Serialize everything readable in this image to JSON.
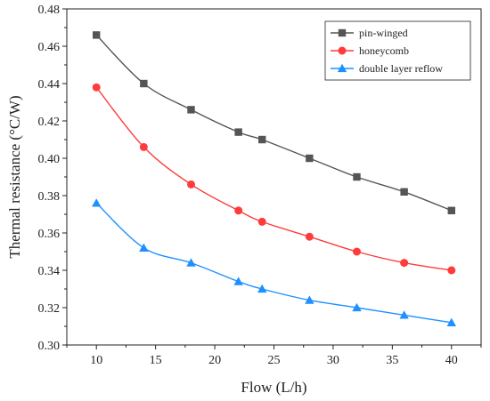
{
  "chart_data": {
    "type": "line",
    "xlabel": "Flow (L/h)",
    "ylabel": "Thermal resistance (°C/W)",
    "xlim": [
      7.5,
      42.5
    ],
    "ylim": [
      0.3,
      0.48
    ],
    "xticks": [
      10,
      15,
      20,
      25,
      30,
      35,
      40
    ],
    "yticks": [
      0.3,
      0.32,
      0.34,
      0.36,
      0.38,
      0.4,
      0.42,
      0.44,
      0.46,
      0.48
    ],
    "tick_labels_y": [
      "0.30",
      "0.32",
      "0.34",
      "0.36",
      "0.38",
      "0.40",
      "0.42",
      "0.44",
      "0.46",
      "0.48"
    ],
    "tick_labels_x": [
      "10",
      "15",
      "20",
      "25",
      "30",
      "35",
      "40"
    ],
    "grid": false,
    "legend_position": "top-right",
    "x": [
      10,
      14,
      18,
      22,
      24,
      28,
      32,
      36,
      40
    ],
    "series": [
      {
        "name": "pin-winged",
        "marker": "square",
        "color": "#555555",
        "values": [
          0.466,
          0.44,
          0.426,
          0.414,
          0.41,
          0.4,
          0.39,
          0.382,
          0.372
        ]
      },
      {
        "name": "honeycomb",
        "marker": "circle",
        "color": "#ff3b3b",
        "values": [
          0.438,
          0.406,
          0.386,
          0.372,
          0.366,
          0.358,
          0.35,
          0.344,
          0.34
        ]
      },
      {
        "name": "double layer reflow",
        "marker": "triangle",
        "color": "#1e90ff",
        "values": [
          0.376,
          0.352,
          0.344,
          0.334,
          0.33,
          0.324,
          0.32,
          0.316,
          0.312
        ]
      }
    ]
  }
}
